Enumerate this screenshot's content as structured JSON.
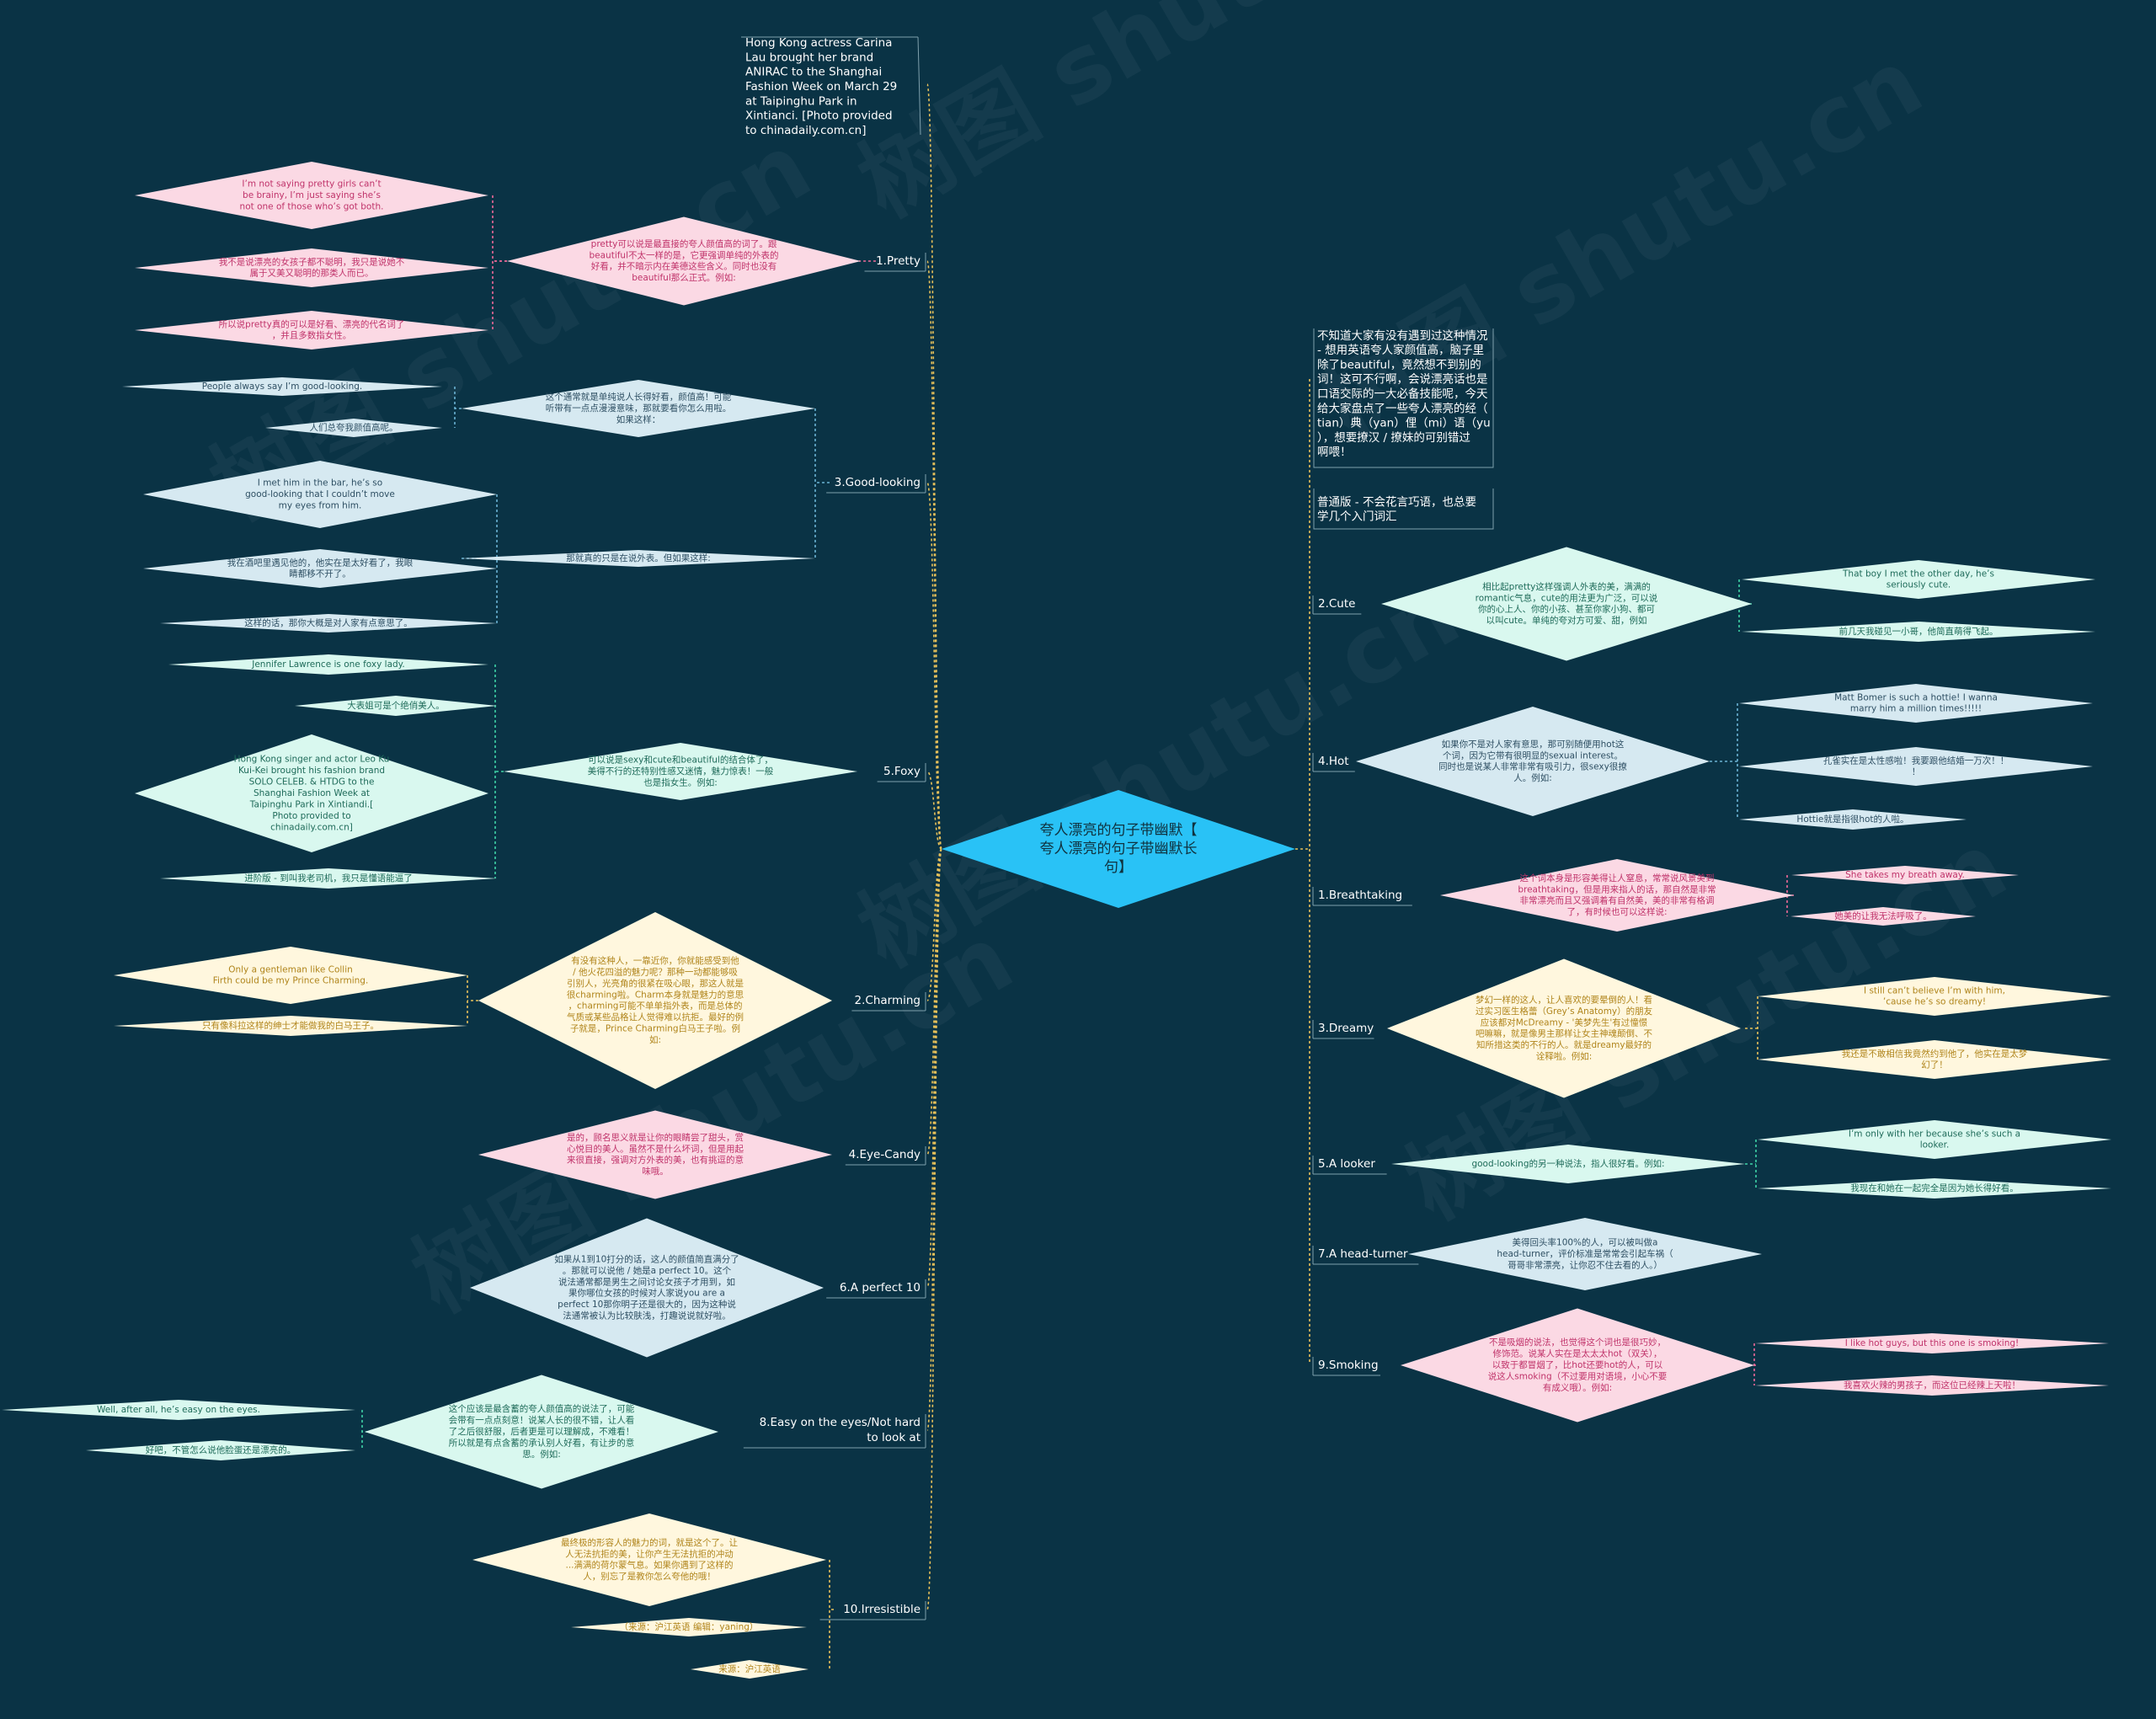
{
  "root": {
    "text": "夸人漂亮的句子带幽默【夸人漂亮的句子带幽默长句】"
  },
  "left_branches": [
    {
      "label": "Hong Kong actress Carina Lau brought her brand ANIRAC to the Shanghai Fashion Week on March 29 at Taipinghu Park in Xintianci. [Photo provided to chinadaily.com.cn]"
    },
    {
      "label": "1.Pretty",
      "desc": "pretty可以说是最直接的夸人颜值高的词了。跟beautiful不太一样的是，它更强调单纯的外表的好看，并不暗示内在美德这些含义。同时也没有beautiful那么正式。例如:",
      "examples": [
        "I’m not saying pretty girls can’t be brainy, I’m just saying she’s not one of those who’s got both.",
        "我不是说漂亮的女孩子都不聪明，我只是说她不属于又美又聪明的那类人而已。",
        "所以说pretty真的可以是好看、漂亮的代名词了，并且多数指女性。"
      ]
    },
    {
      "label": "3.Good-looking",
      "groups": [
        {
          "desc": "这个通常就是单纯说人长得好看，颜值高！可能听带有一点点漫漫意味，那就要看你怎么用啦。如果这样：",
          "examples": [
            "People always say I’m good-looking.",
            "人们总夸我颜值高呢。"
          ]
        },
        {
          "desc": "那就真的只是在说外表。但如果这样:",
          "examples": [
            "I met him in the bar, he’s so good-looking that I couldn’t move my eyes from him.",
            "我在酒吧里遇见他的，他实在是太好看了，我眼睛都移不开了。",
            "这样的话，那你大概是对人家有点意思了。"
          ]
        }
      ]
    },
    {
      "label": "5.Foxy",
      "desc": "可以说是sexy和cute和beautiful的结合体了，美得不行的还特别性感又迷情，魅力惊表！一般也是指女生。例如:",
      "examples": [
        "Jennifer Lawrence is one foxy lady.",
        "大表姐可是个绝俏美人。",
        "Hong Kong singer and actor Leo Ku Kui-Kei brought his fashion brand SOLO CELEB. & HTDG to the Shanghai Fashion Week at Taipinghu Park in Xintiandi.[ Photo provided to chinadaily.com.cn]",
        "进阶版 - 到叫我老司机，我只是懂语能逼了"
      ]
    },
    {
      "label": "2.Charming",
      "desc": "有没有这种人，一靠近你，你就能感受到他 / 他火花四溢的魅力呢？那种一动都能够吸引别人，光亮角的很紧在吸心眼，那这人就是很charming啦。Charm本身就是魅力的意思，charming可能不单单指外表，而是总体的气质或某些品格让人觉得难以抗拒。最好的例子就是，Prince Charming白马王子啦。例如:",
      "examples": [
        "Only a gentleman like Collin Firth could be my Prince Charming.",
        "只有像科拉这样的绅士才能做我的白马王子。"
      ]
    },
    {
      "label": "4.Eye-Candy",
      "desc": "是的，顾名思义就是让你的眼睛尝了甜头，赏心悦目的美人。虽然不是什么坏词，但是用起来很直接，强调对方外表的美，也有挑逗的意味哦。"
    },
    {
      "label": "6.A perfect 10",
      "desc": "如果从1到10打分的话，这人的颜值简直满分了。那就可以说他 / 她是a perfect 10。这个说法通常都是男生之间讨论女孩子才用到，如果你哪位女孩的时候对人家说you are a perfect 10那你明子还是很大的，因为这种说法通常被认为比较肤浅，打趣说说就好啦。"
    },
    {
      "label": "8.Easy on the eyes/Not hard to look at",
      "desc": "这个应该是最含蓄的夸人颜值高的说法了，可能会带有一点点刻意！说某人长的很不错，让人看了之后很舒服，后者更是可以理解成，不难看！所以就是有点含蓄的承认别人好看，有让步的意思。例如:",
      "examples": [
        "Well, after all, he’s easy on the eyes.",
        "好吧，不管怎么说他脸蛋还是漂亮的。"
      ]
    },
    {
      "label": "10.Irresistible",
      "desc": "最终极的形容人的魅力的词，就是这个了。让人无法抗拒的美，让你产生无法抗拒的冲动...满满的荷尔蒙气息。如果你遇到了这样的人，别忘了是教你怎么夸他的哦！",
      "examples": [
        "（来源：沪江英语 编辑：yaning）",
        "来源：沪江英语"
      ]
    }
  ],
  "right_notes": [
    "不知道大家有没有遇到过这种情况 - 想用英语夸人家颜值高，脑子里除了beautiful，竟然想不到别的词！这可不行啊，会说漂亮话也是口语交际的一大必备技能呢，今天给大家盘点了一些夸人漂亮的经（tian）典（yan）俚（mi）语（yu），想要撩汉 / 撩妹的可别错过啊喂！",
    "普通版 - 不会花言巧语，也总要学几个入门词汇"
  ],
  "right_branches": [
    {
      "label": "2.Cute",
      "desc": "相比起pretty这样强调人外表的美，满满的romantic气息，cute的用法更为广泛，可以说你的心上人、你的小孩、甚至你家小狗、都可以叫cute。单纯的夸对方可爱、甜，例如",
      "examples": [
        "That boy I met the other day, he’s seriously cute.",
        "前几天我碰见一小哥，他简直萌得飞起。"
      ]
    },
    {
      "label": "4.Hot",
      "desc": "如果你不是对人家有意思，那可别随便用hot这个词，因为它带有很明显的sexual interest。同时也是说某人非常非常有吸引力，很sexy很撩人。例如:",
      "examples": [
        "Matt Bomer is such a hottie! I wanna marry him a million times!!!!!",
        "孔雀实在是太性感啦！我要跟他结婚一万次！！！",
        "Hottie就是指很hot的人啦。"
      ]
    },
    {
      "label": "1.Breathtaking",
      "desc": "这个词本身是形容美得让人窒息，常常说风景美到breathtaking，但是用来指人的话，那自然是非常非常漂亮而且又强调着有自然美，美的非常有格调了，有时候也可以这样说:",
      "examples": [
        "She takes my breath away.",
        "她美的让我无法呼吸了。"
      ]
    },
    {
      "label": "3.Dreamy",
      "desc": "梦幻一样的这人，让人喜欢的要晕倒的人！看过实习医生格蕾（Grey’s Anatomy）的朋友应该都对McDreamy - '美梦先生'有过憧憬吧嘛嘛，就是像男主那样让女主神魂颠倒、不知所措这类的不行的人。就是dreamy最好的诠释啦。例如:",
      "examples": [
        "I still can’t believe I’m with him, ’cause he’s so dreamy!",
        "我还是不敢相信我竟然约到他了，他实在是太梦幻了！"
      ]
    },
    {
      "label": "5.A looker",
      "desc": "good-looking的另一种说法，指人很好看。例如:",
      "examples": [
        "I’m only with her because she’s such a looker.",
        "我现在和她在一起完全是因为她长得好看。"
      ]
    },
    {
      "label": "7.A head-turner",
      "desc": "美得回头率100%的人，可以被叫做a head-turner，评价标准是常常会引起车祸（哥哥非常漂亮，让你忍不住去看的人。）"
    },
    {
      "label": "9.Smoking",
      "desc": "不是吸烟的说法，也觉得这个词也是很巧妙，修饰范。说某人实在是太太太hot（双关），以致于都冒烟了，比hot还要hot的人，可以说这人smoking（不过要用对语境，小心不要有成义哦）。例如:",
      "examples": [
        "I like hot guys, but this one is smoking!",
        "我喜欢火辣的男孩子，而这位已经辣上天啦！"
      ]
    }
  ],
  "watermarks": [
    "树图 shutu.cn",
    "树图 shutu.cn",
    "树图 shutu.cn",
    "树图 shutu.cn",
    "树图 shutu.cn",
    "树图 shutu.cn"
  ],
  "colors": {
    "background": "#0a3345",
    "root_fill": "#29c2f6",
    "pink_fill": "#fbd9e4",
    "pink_text": "#c0336a",
    "mint_fill": "#d9f8ef",
    "mint_text": "#1f6b5a",
    "blue_fill": "#d6e9f1",
    "blue_text": "#2e4f63",
    "cream_fill": "#fff7de",
    "cream_text": "#b0851c",
    "line_white": "#ffffff"
  }
}
